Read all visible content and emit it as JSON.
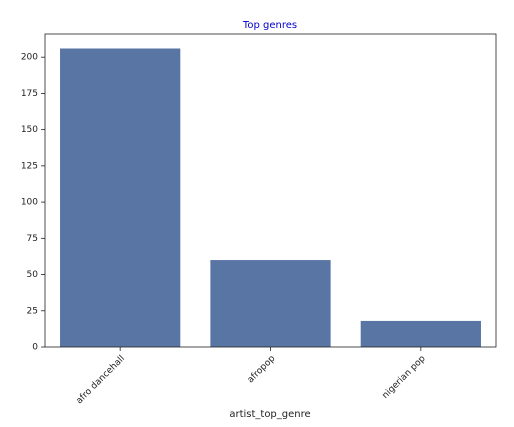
{
  "chart_data": {
    "type": "bar",
    "title": "Top genres",
    "x_label": "artist_top_genre",
    "categories": [
      "afro dancehall",
      "afropop",
      "nigerian pop"
    ],
    "values": [
      206,
      60,
      18
    ],
    "color": "#5875a4",
    "ylim": [
      0,
      216
    ],
    "yticks": [
      0,
      25,
      50,
      75,
      100,
      125,
      150,
      175,
      200
    ]
  }
}
